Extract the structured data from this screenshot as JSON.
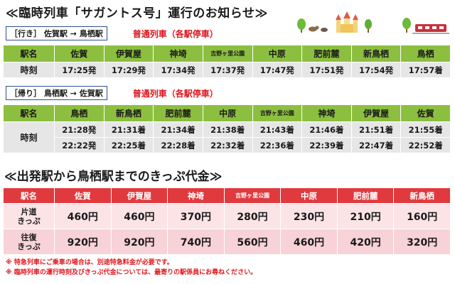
{
  "title": "≪臨時列車「サガントス号」運行のお知らせ≫",
  "outbound": {
    "direction": "［行き］ 佐賀駅 → 鳥栖駅",
    "train_type": "普通列車（各駅停車）",
    "header_label": "駅名",
    "row_label": "時刻",
    "stations": [
      "佐賀",
      "伊賀屋",
      "神埼",
      "吉野ヶ里公園",
      "中原",
      "肥前麓",
      "新鳥栖",
      "鳥栖"
    ],
    "times": [
      "17:25発",
      "17:29発",
      "17:34発",
      "17:37発",
      "17:47発",
      "17:51発",
      "17:54発",
      "17:57着"
    ]
  },
  "return": {
    "direction": "［帰り］ 鳥栖駅 → 佐賀駅",
    "train_type": "普通列車（各駅停車）",
    "header_label": "駅名",
    "row_label": "時刻",
    "stations": [
      "鳥栖",
      "新鳥栖",
      "肥前麓",
      "中原",
      "吉野ヶ里公園",
      "神埼",
      "伊賀屋",
      "佐賀"
    ],
    "times_1": [
      "21:28発",
      "21:31着",
      "21:34着",
      "21:38着",
      "21:43着",
      "21:46着",
      "21:51着",
      "21:55着"
    ],
    "times_2": [
      "22:22発",
      "22:25着",
      "22:28着",
      "22:32着",
      "22:36着",
      "22:39着",
      "22:47着",
      "22:52着"
    ]
  },
  "fare": {
    "title": "≪出発駅から鳥栖駅までのきっぷ代金≫",
    "header_label": "駅名",
    "stations": [
      "佐賀",
      "伊賀屋",
      "神埼",
      "吉野ヶ里公園",
      "中原",
      "肥前麓",
      "新鳥栖"
    ],
    "one_way_label": "片道\nきっぷ",
    "round_trip_label": "往復\nきっぷ",
    "one_way": [
      "460円",
      "460円",
      "370円",
      "280円",
      "230円",
      "210円",
      "160円"
    ],
    "round_trip": [
      "920円",
      "920円",
      "740円",
      "560円",
      "460円",
      "420円",
      "320円"
    ]
  },
  "notes": [
    "※ 特急列車にご乗車の場合は、別途特急料金が必要です。",
    "※ 臨時列車の運行時刻及びきっぷ代金については、最寄りの駅係員にお尋ねください。"
  ],
  "colors": {
    "green_header": "#8cbf3f",
    "red_header": "#e03a3e",
    "accent_red": "#e0151c",
    "box_border": "#2d4f8a"
  }
}
